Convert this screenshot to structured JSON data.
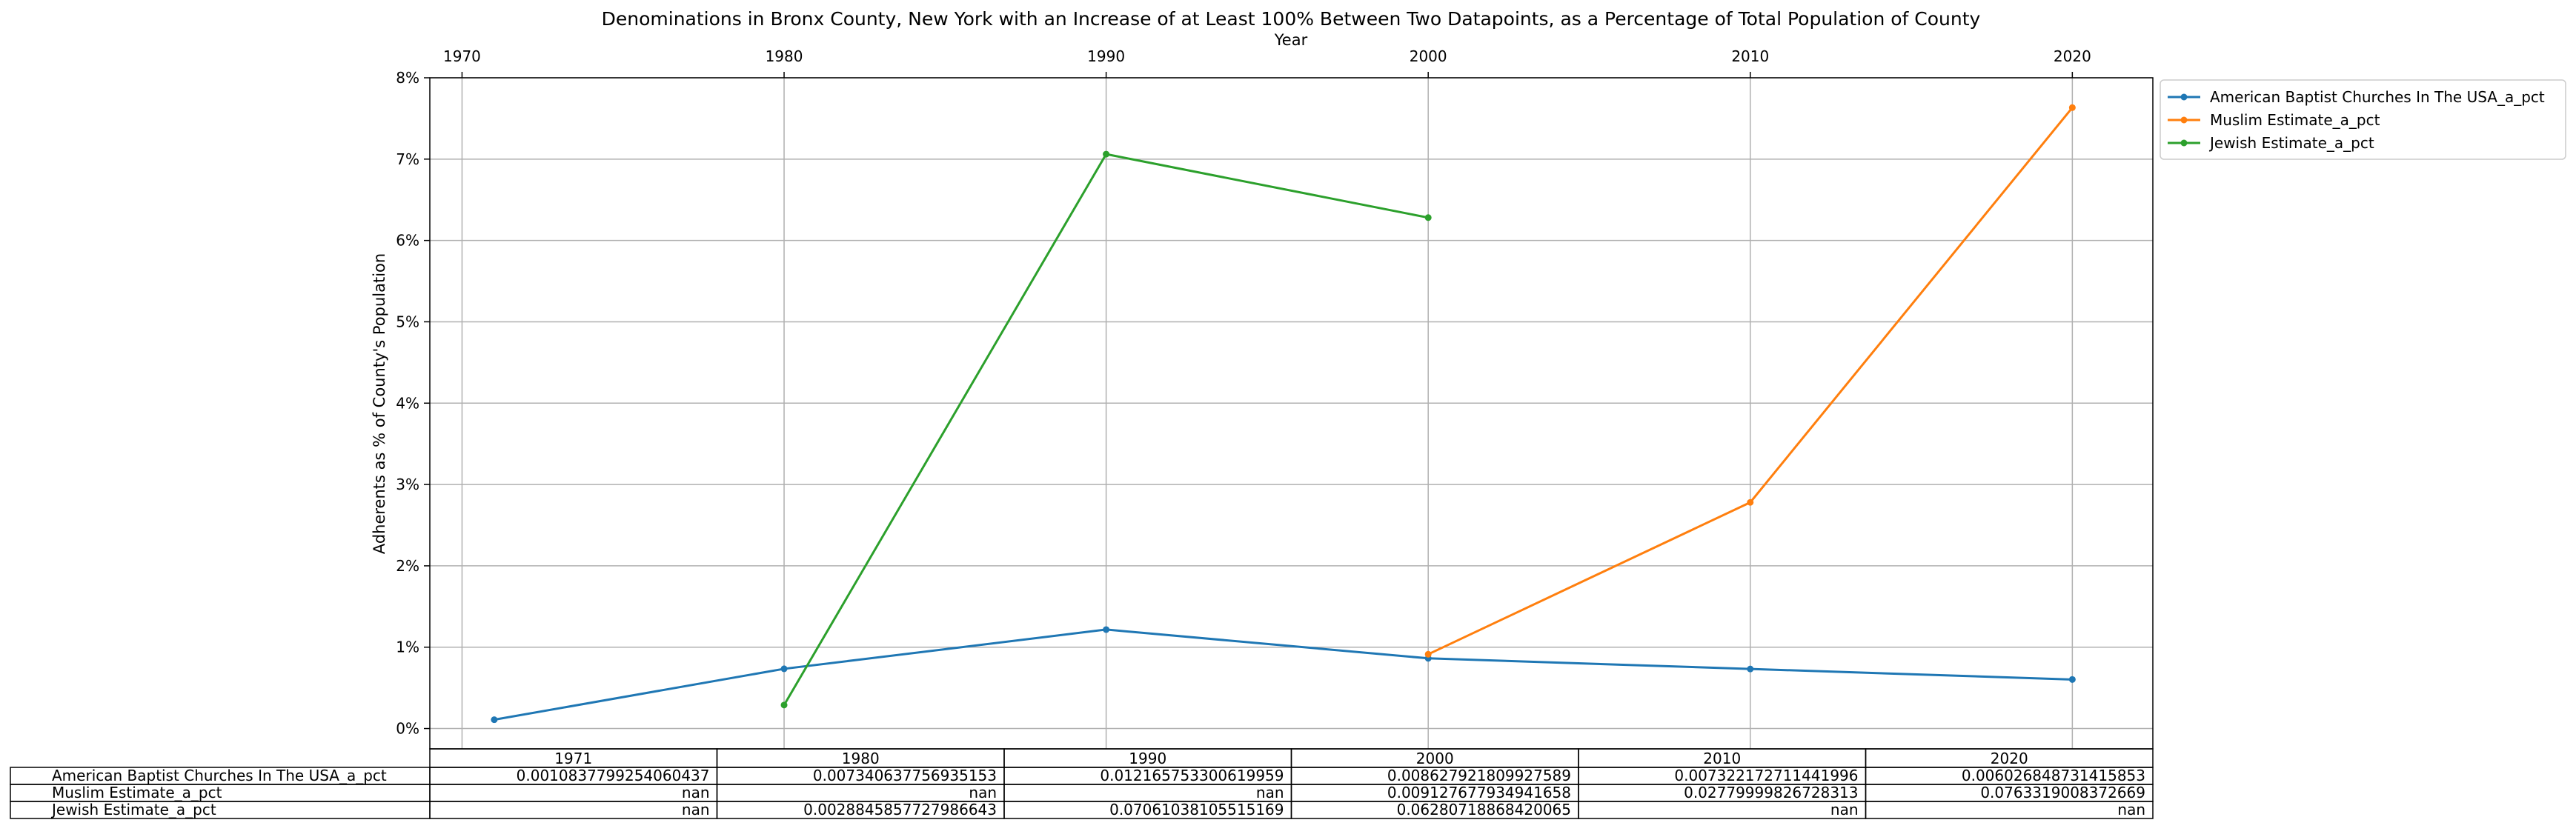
{
  "chart_data": {
    "type": "line",
    "title": "Denominations in Bronx County, New York with an Increase of at Least 100% Between Two Datapoints, as a Percentage of Total Population of County",
    "xlabel": "Year",
    "ylabel": "Adherents as % of County's Population",
    "x_ticks": [
      1970,
      1980,
      1990,
      2000,
      2010,
      2020
    ],
    "xlim": [
      1969,
      2022.5
    ],
    "y_ticks": [
      0,
      1,
      2,
      3,
      4,
      5,
      6,
      7,
      8
    ],
    "y_tick_labels": [
      "0%",
      "1%",
      "2%",
      "3%",
      "4%",
      "5%",
      "6%",
      "7%",
      "8%"
    ],
    "ylim": [
      -0.25,
      8
    ],
    "grid": true,
    "legend_position": "outside-right",
    "x": [
      1971,
      1980,
      1990,
      2000,
      2010,
      2020
    ],
    "series": [
      {
        "name": "American Baptist Churches In The USA_a_pct",
        "color": "#1f77b4",
        "values": [
          0.10837799254060437,
          0.7340637756935153,
          1.216575330061996,
          0.8627921809927589,
          0.7322172711441997,
          0.6026848731415853
        ]
      },
      {
        "name": "Muslim Estimate_a_pct",
        "color": "#ff7f0e",
        "values": [
          null,
          null,
          null,
          0.9127677934941658,
          2.779999826728313,
          7.63319008372669
        ]
      },
      {
        "name": "Jewish Estimate_a_pct",
        "color": "#2ca02c",
        "values": [
          null,
          0.28845857727986646,
          7.061038105515169,
          6.280718868420065,
          null,
          null
        ]
      }
    ],
    "table": {
      "columns": [
        "1971",
        "1980",
        "1990",
        "2000",
        "2010",
        "2020"
      ],
      "rows": [
        {
          "label": "American Baptist Churches In The USA_a_pct",
          "cells": [
            "0.0010837799254060437",
            "0.007340637756935153",
            "0.012165753300619959",
            "0.008627921809927589",
            "0.007322172711441996",
            "0.006026848731415853"
          ]
        },
        {
          "label": "Muslim Estimate_a_pct",
          "cells": [
            "nan",
            "nan",
            "nan",
            "0.009127677934941658",
            "0.02779999826728313",
            "0.0763319008372669"
          ]
        },
        {
          "label": "Jewish Estimate_a_pct",
          "cells": [
            "nan",
            "0.0028845857727986643",
            "0.07061038105515169",
            "0.06280718868420065",
            "nan",
            "nan"
          ]
        }
      ]
    }
  }
}
